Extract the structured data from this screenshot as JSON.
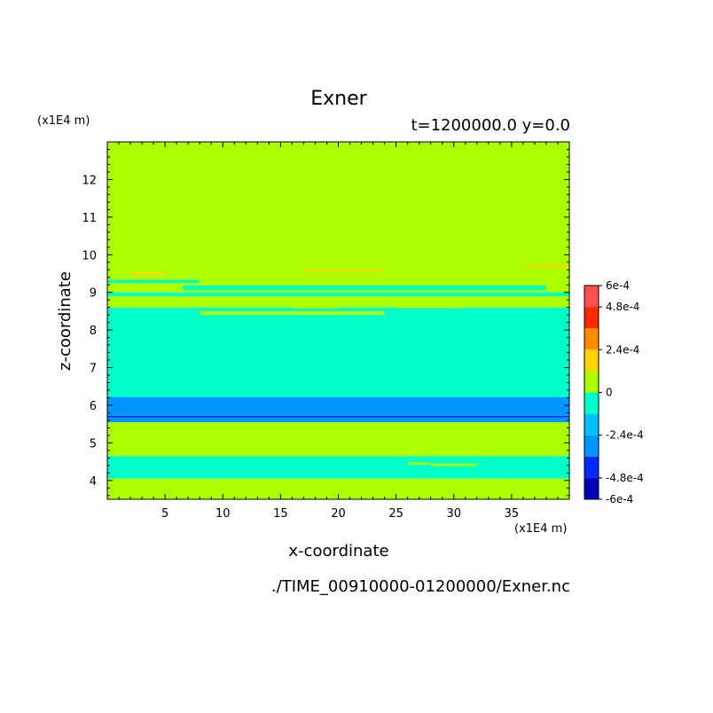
{
  "chart_data": {
    "type": "heatmap",
    "title": "Exner",
    "subtitle": "t=1200000.0 y=0.0",
    "xlabel": "x-coordinate",
    "ylabel": "z-coordinate",
    "x_unit": "(x1E4 m)",
    "y_unit": "(x1E4 m)",
    "xlim": [
      0,
      40
    ],
    "ylim": [
      3.5,
      13
    ],
    "x_ticks": [
      5,
      10,
      15,
      20,
      25,
      30,
      35
    ],
    "y_ticks": [
      4,
      5,
      6,
      7,
      8,
      9,
      10,
      11,
      12
    ],
    "footer": "./TIME_00910000-01200000/Exner.nc",
    "colorbar": {
      "levels": [
        -0.0006,
        -0.00048,
        -0.00036,
        -0.00024,
        -0.00012,
        0,
        0.00012,
        0.00024,
        0.00036,
        0.00048,
        0.0006
      ],
      "colors": [
        "#0000b4",
        "#0028ff",
        "#0096ff",
        "#00bfff",
        "#00ffc8",
        "#aaff00",
        "#ffd400",
        "#ff8c00",
        "#ff2800",
        "#ff5050"
      ],
      "tick_labels": [
        "-6e-4",
        "-4.8e-4",
        "-2.4e-4",
        "0",
        "2.4e-4",
        "4.8e-4",
        "6e-4"
      ],
      "tick_values": [
        -0.0006,
        -0.00048,
        -0.00024,
        0,
        0.00024,
        0.00048,
        0.0006
      ]
    },
    "bands": [
      {
        "z": [
          3.5,
          4.05
        ],
        "value": 6e-05
      },
      {
        "z": [
          4.05,
          4.65
        ],
        "value": -6e-05
      },
      {
        "z": [
          4.65,
          5.55
        ],
        "value": 6e-05
      },
      {
        "z": [
          5.55,
          5.68
        ],
        "value": -0.0003
      },
      {
        "z": [
          5.68,
          5.72
        ],
        "value": -0.00042
      },
      {
        "z": [
          5.72,
          6.22
        ],
        "value": -0.0003
      },
      {
        "z": [
          6.22,
          8.6
        ],
        "value": -6e-05
      },
      {
        "z": [
          8.6,
          8.9
        ],
        "value": 6e-05
      },
      {
        "z": [
          8.9,
          9.0
        ],
        "value": -6e-05
      },
      {
        "z": [
          9.0,
          13.0
        ],
        "value": 6e-05
      }
    ],
    "patches": [
      {
        "x": [
          0,
          8
        ],
        "z": [
          9.25,
          9.33
        ],
        "value": -6e-05
      },
      {
        "x": [
          6.5,
          38
        ],
        "z": [
          9.06,
          9.18
        ],
        "value": -6e-05
      },
      {
        "x": [
          8,
          24
        ],
        "z": [
          8.4,
          8.5
        ],
        "value": 6e-05
      },
      {
        "x": [
          16,
          20
        ],
        "z": [
          8.57,
          8.63
        ],
        "value": 6e-05
      },
      {
        "x": [
          25,
          31
        ],
        "z": [
          8.58,
          8.64
        ],
        "value": 6e-05
      },
      {
        "x": [
          34,
          40
        ],
        "z": [
          8.65,
          8.8
        ],
        "value": 6e-05
      },
      {
        "x": [
          2,
          5
        ],
        "z": [
          9.45,
          9.52
        ],
        "value": 0.00018
      },
      {
        "x": [
          17,
          24
        ],
        "z": [
          9.55,
          9.6
        ],
        "value": 0.00018
      },
      {
        "x": [
          36,
          40
        ],
        "z": [
          9.66,
          9.72
        ],
        "value": 0.00018
      },
      {
        "x": [
          18,
          25
        ],
        "z": [
          6.35,
          6.42
        ],
        "value": -6e-05
      },
      {
        "x": [
          28,
          32
        ],
        "z": [
          4.38,
          4.45
        ],
        "value": 6e-05
      },
      {
        "x": [
          26,
          28
        ],
        "z": [
          4.42,
          4.48
        ],
        "value": 6e-05
      }
    ]
  }
}
